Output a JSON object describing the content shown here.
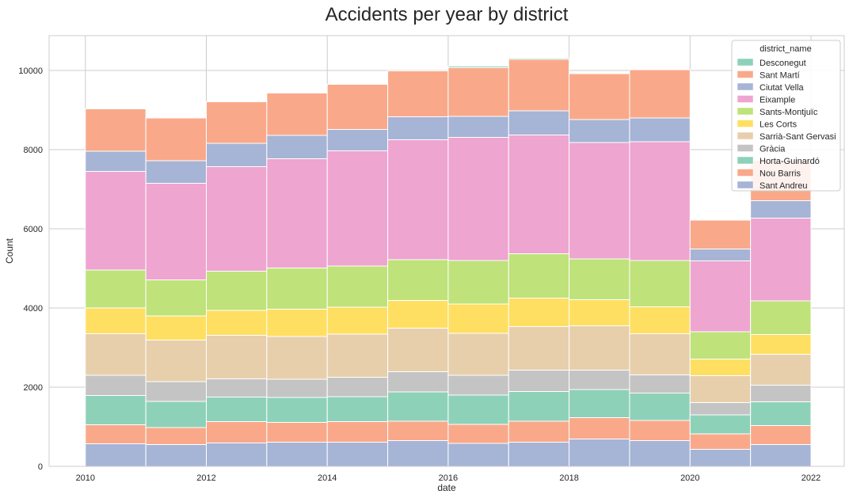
{
  "chart_data": {
    "type": "bar",
    "stacked": true,
    "title": "Accidents per year by district",
    "xlabel": "date",
    "ylabel": "Count",
    "xlim": [
      2009.4,
      2022.55
    ],
    "ylim": [
      0,
      10880
    ],
    "xticks": [
      2010,
      2012,
      2014,
      2016,
      2018,
      2020,
      2022
    ],
    "yticks": [
      0,
      2000,
      4000,
      6000,
      8000,
      10000
    ],
    "grid": true,
    "legend_title": "district_name",
    "legend_position": "top-right",
    "bins": [
      [
        2010.0,
        2011.0
      ],
      [
        2011.0,
        2012.0
      ],
      [
        2012.0,
        2013.0
      ],
      [
        2013.0,
        2014.0
      ],
      [
        2014.0,
        2015.0
      ],
      [
        2015.0,
        2016.0
      ],
      [
        2016.0,
        2017.0
      ],
      [
        2017.0,
        2018.0
      ],
      [
        2018.0,
        2019.0
      ],
      [
        2019.0,
        2020.0
      ],
      [
        2020.0,
        2021.0
      ],
      [
        2021.0,
        2022.0
      ]
    ],
    "series": [
      {
        "name": "Sant Andreu",
        "color": "#a6b4d6",
        "values": [
          570,
          550,
          590,
          610,
          610,
          650,
          580,
          610,
          690,
          650,
          430,
          550
        ]
      },
      {
        "name": "Nou Barris",
        "color": "#f9a98a",
        "values": [
          480,
          430,
          540,
          500,
          520,
          490,
          480,
          530,
          540,
          510,
          390,
          480
        ]
      },
      {
        "name": "Horta-Guinardó",
        "color": "#8ed1b9",
        "values": [
          740,
          660,
          620,
          630,
          630,
          740,
          740,
          750,
          710,
          690,
          480,
          600
        ]
      },
      {
        "name": "Gràcia",
        "color": "#c4c4c4",
        "values": [
          510,
          500,
          460,
          460,
          490,
          510,
          500,
          540,
          490,
          460,
          310,
          420
        ]
      },
      {
        "name": "Sarrià-Sant Gervasi",
        "color": "#e7cfac",
        "values": [
          1050,
          1050,
          1100,
          1080,
          1090,
          1100,
          1060,
          1100,
          1120,
          1040,
          680,
          780
        ]
      },
      {
        "name": "Les Corts",
        "color": "#ffdf62",
        "values": [
          650,
          610,
          630,
          690,
          680,
          700,
          740,
          720,
          660,
          680,
          420,
          500
        ]
      },
      {
        "name": "Sants-Montjuïc",
        "color": "#bfe27b",
        "values": [
          960,
          910,
          990,
          1040,
          1040,
          1030,
          1100,
          1120,
          1030,
          1170,
          690,
          850
        ]
      },
      {
        "name": "Eixample",
        "color": "#eea5d0",
        "values": [
          2490,
          2440,
          2640,
          2760,
          2910,
          3030,
          3110,
          3000,
          2940,
          3000,
          1790,
          2090
        ]
      },
      {
        "name": "Ciutat Vella",
        "color": "#a6b4d6",
        "values": [
          510,
          570,
          590,
          590,
          540,
          580,
          530,
          610,
          580,
          600,
          300,
          440
        ]
      },
      {
        "name": "Sant Martí",
        "color": "#f9a98a",
        "values": [
          1070,
          1080,
          1050,
          1070,
          1140,
          1160,
          1230,
          1300,
          1160,
          1220,
          730,
          1020
        ]
      },
      {
        "name": "Desconegut",
        "color": "#8ed1b9",
        "values": [
          0,
          0,
          0,
          0,
          0,
          0,
          40,
          30,
          0,
          0,
          0,
          0
        ]
      }
    ],
    "legend_order": [
      "Desconegut",
      "Sant Martí",
      "Ciutat Vella",
      "Eixample",
      "Sants-Montjuïc",
      "Les Corts",
      "Sarrià-Sant Gervasi",
      "Gràcia",
      "Horta-Guinardó",
      "Nou Barris",
      "Sant Andreu"
    ]
  }
}
